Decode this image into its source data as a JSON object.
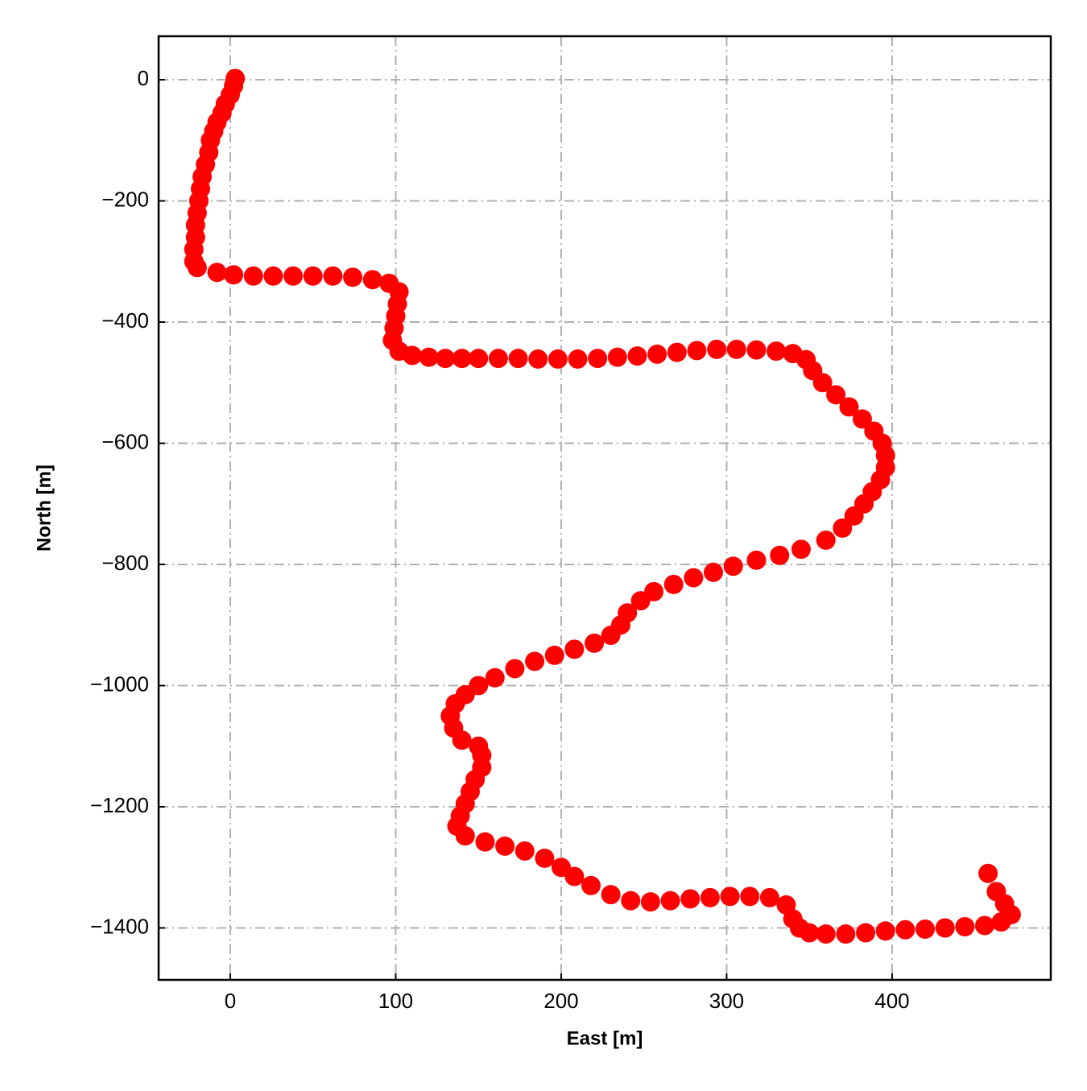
{
  "chart_data": {
    "type": "scatter",
    "xlabel": "East [m]",
    "ylabel": "North [m]",
    "color": "#ff0000",
    "grid": true,
    "xlim": [
      -43.3,
      495.9
    ],
    "ylim": [
      -1485.7,
      71.8
    ],
    "xticks": [
      0,
      100,
      200,
      300,
      400
    ],
    "yticks": [
      0,
      {
        "value": -200,
        "label": "−200"
      },
      {
        "value": -400,
        "label": "−400"
      },
      {
        "value": -600,
        "label": "−600"
      },
      {
        "value": -800,
        "label": "−800"
      },
      {
        "value": -1000,
        "label": "−1000"
      },
      {
        "value": -1200,
        "label": "−1200"
      },
      {
        "value": -1400,
        "label": "−1400"
      }
    ],
    "x": [
      3,
      2,
      0,
      -3,
      -5,
      -8,
      -10,
      -12,
      -13,
      -15,
      -17,
      -18,
      -19,
      -20,
      -21,
      -21,
      -22,
      -22,
      -20,
      -8,
      2,
      14,
      26,
      38,
      50,
      62,
      74,
      86,
      96,
      102,
      101,
      100,
      99,
      98,
      102,
      110,
      120,
      130,
      140,
      150,
      162,
      174,
      186,
      198,
      210,
      222,
      234,
      246,
      258,
      270,
      282,
      294,
      306,
      318,
      330,
      340,
      348,
      352,
      358,
      366,
      374,
      382,
      389,
      394,
      396,
      396,
      393,
      388,
      383,
      377,
      370,
      360,
      345,
      332,
      318,
      304,
      292,
      280,
      268,
      256,
      248,
      240,
      236,
      230,
      220,
      208,
      196,
      184,
      172,
      160,
      150,
      142,
      136,
      133,
      135,
      140,
      150,
      152,
      152,
      148,
      145,
      142,
      139,
      137,
      142,
      154,
      166,
      178,
      190,
      200,
      208,
      218,
      230,
      242,
      254,
      266,
      278,
      290,
      302,
      314,
      326,
      336,
      340,
      344,
      350,
      360,
      372,
      384,
      396,
      408,
      420,
      432,
      444,
      456,
      466,
      472,
      468,
      463,
      458
    ],
    "values": [
      2,
      -10,
      -25,
      -40,
      -55,
      -70,
      -85,
      -100,
      -120,
      -140,
      -160,
      -180,
      -200,
      -220,
      -240,
      -260,
      -280,
      -300,
      -310,
      -318,
      -322,
      -324,
      -324,
      -324,
      -324,
      -324,
      -326,
      -330,
      -336,
      -350,
      -370,
      -390,
      -410,
      -430,
      -448,
      -455,
      -458,
      -460,
      -460,
      -460,
      -460,
      -460,
      -461,
      -461,
      -461,
      -460,
      -458,
      -456,
      -453,
      -450,
      -447,
      -445,
      -445,
      -446,
      -448,
      -452,
      -462,
      -480,
      -500,
      -520,
      -540,
      -560,
      -580,
      -600,
      -620,
      -640,
      -660,
      -680,
      -700,
      -720,
      -740,
      -760,
      -775,
      -785,
      -793,
      -803,
      -813,
      -822,
      -833,
      -845,
      -860,
      -880,
      -900,
      -917,
      -930,
      -940,
      -950,
      -960,
      -972,
      -987,
      -1000,
      -1015,
      -1030,
      -1050,
      -1070,
      -1090,
      -1100,
      -1115,
      -1135,
      -1155,
      -1175,
      -1195,
      -1215,
      -1232,
      -1248,
      -1258,
      -1265,
      -1273,
      -1285,
      -1300,
      -1315,
      -1330,
      -1345,
      -1355,
      -1357,
      -1355,
      -1352,
      -1350,
      -1348,
      -1348,
      -1350,
      -1362,
      -1385,
      -1400,
      -1408,
      -1410,
      -1410,
      -1408,
      -1405,
      -1403,
      -1402,
      -1400,
      -1398,
      -1396,
      -1390,
      -1378,
      -1360,
      -1340,
      -1310
    ]
  }
}
